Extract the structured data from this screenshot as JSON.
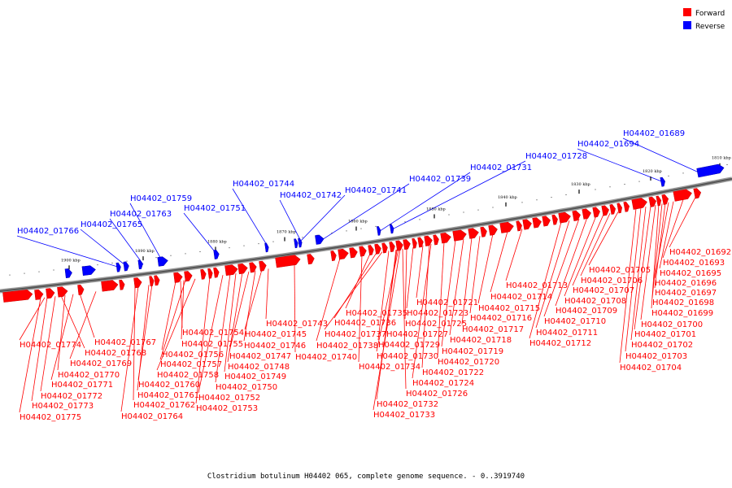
{
  "title": "Clostridium botulinum H04402 065, complete genome sequence. - 0..3919740",
  "colors": {
    "forward": "#ff0000",
    "reverse": "#0000ff"
  },
  "legend": [
    {
      "key": "forward",
      "label": "Forward"
    },
    {
      "key": "reverse",
      "label": "Reverse"
    }
  ],
  "ticks": [
    "1900 kbp",
    "1890 kbp",
    "1880 kbp",
    "1870 kbp",
    "1860 kbp",
    "1850 kbp",
    "1840 kbp",
    "1830 kbp",
    "1820 kbp",
    "1810 kbp"
  ],
  "reverse_labels": [
    "H04402_01689",
    "H04402_01694",
    "H04402_01728",
    "H04402_01731",
    "H04402_01739",
    "H04402_01741",
    "H04402_01742",
    "H04402_01744",
    "H04402_01751",
    "H04402_01759",
    "H04402_01763",
    "H04402_01765",
    "H04402_01766"
  ],
  "forward_labels_left": [
    "H04402_01774",
    "H04402_01768",
    "H04402_01767",
    "H04402_01769",
    "H04402_01770",
    "H04402_01771",
    "H04402_01772",
    "H04402_01773",
    "H04402_01775",
    "H04402_01754",
    "H04402_01755",
    "H04402_01756",
    "H04402_01757",
    "H04402_01758",
    "H04402_01760",
    "H04402_01761",
    "H04402_01762",
    "H04402_01764",
    "H04402_01743",
    "H04402_01745",
    "H04402_01746",
    "H04402_01747",
    "H04402_01748",
    "H04402_01749",
    "H04402_01750",
    "H04402_01752",
    "H04402_01753",
    "H04402_01740"
  ],
  "forward_labels_middle": [
    "H04402_01735",
    "H04402_01736",
    "H04402_01737",
    "H04402_01738",
    "H04402_01734",
    "H04402_01721",
    "H04402_01723",
    "H04402_01725",
    "H04402_01727",
    "H04402_01729",
    "H04402_01730",
    "H04402_01722",
    "H04402_01724",
    "H04402_01726",
    "H04402_01732",
    "H04402_01733",
    "H04402_01713",
    "H04402_01714",
    "H04402_01715",
    "H04402_01716",
    "H04402_01717",
    "H04402_01718",
    "H04402_01719",
    "H04402_01720"
  ],
  "forward_labels_right": [
    "H04402_01692",
    "H04402_01693",
    "H04402_01695",
    "H04402_01696",
    "H04402_01697",
    "H04402_01698",
    "H04402_01699",
    "H04402_01700",
    "H04402_01701",
    "H04402_01702",
    "H04402_01703",
    "H04402_01704",
    "H04402_01705",
    "H04402_01706",
    "H04402_01707",
    "H04402_01708",
    "H04402_01709",
    "H04402_01710",
    "H04402_01711",
    "H04402_01712"
  ]
}
